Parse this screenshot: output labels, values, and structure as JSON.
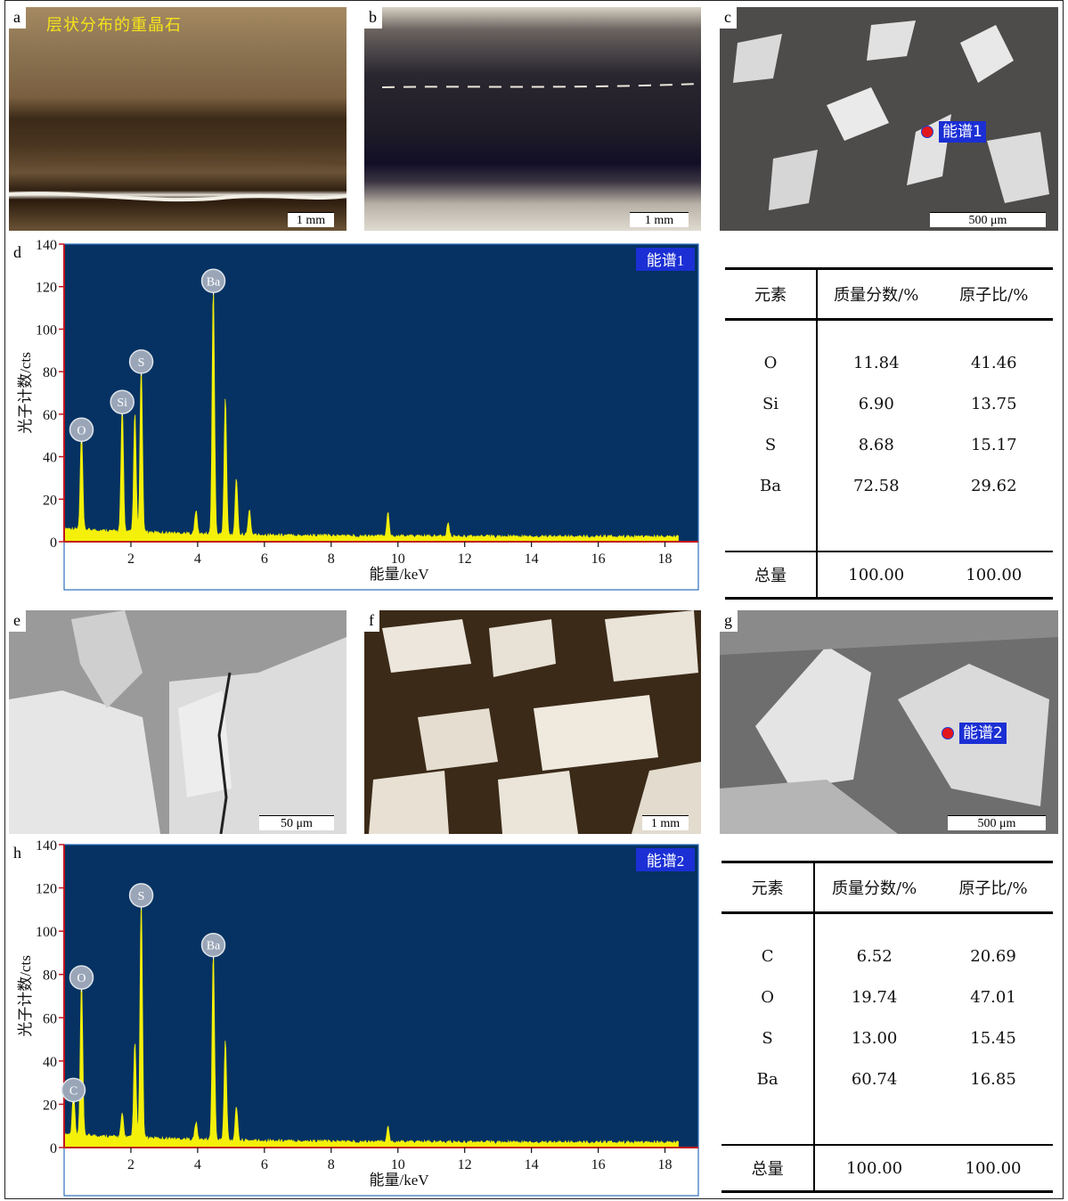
{
  "panels": {
    "a": {
      "letter": "a",
      "caption": "层状分布的重晶石",
      "scale": "1 mm"
    },
    "b": {
      "letter": "b",
      "scale": "1 mm"
    },
    "c": {
      "letter": "c",
      "scale": "500 μm",
      "spot": "能谱1"
    },
    "d": {
      "letter": "d"
    },
    "e": {
      "letter": "e",
      "scale": "50 μm"
    },
    "f": {
      "letter": "f",
      "scale": "1 mm"
    },
    "g": {
      "letter": "g",
      "scale": "500 μm",
      "spot": "能谱2"
    },
    "h": {
      "letter": "h"
    }
  },
  "colors": {
    "plot_bg": "#053262",
    "spectrum": "#f4f00a",
    "axis": "#c0161d",
    "peak_badge": "#9aa6b8"
  },
  "chart_data": [
    {
      "type": "line",
      "panel": "d",
      "legend": "能谱1",
      "xlabel": "能量/keV",
      "ylabel": "光子计数/cts",
      "xlim": [
        0,
        19
      ],
      "ylim": [
        0,
        140
      ],
      "xticks": [
        2,
        4,
        6,
        8,
        10,
        12,
        14,
        16,
        18
      ],
      "yticks": [
        0,
        20,
        40,
        60,
        80,
        100,
        120,
        140
      ],
      "peaks": [
        {
          "label": "O",
          "x": 0.52,
          "y": 46
        },
        {
          "label": "Si",
          "x": 1.74,
          "y": 59
        },
        {
          "label": "",
          "x": 2.12,
          "y": 56
        },
        {
          "label": "S",
          "x": 2.31,
          "y": 78
        },
        {
          "label": "Ba",
          "x": 4.47,
          "y": 116
        },
        {
          "label": "",
          "x": 4.83,
          "y": 64
        },
        {
          "label": "",
          "x": 5.16,
          "y": 27
        },
        {
          "label": "",
          "x": 5.55,
          "y": 12
        },
        {
          "label": "",
          "x": 3.95,
          "y": 11
        },
        {
          "label": "",
          "x": 9.7,
          "y": 11
        },
        {
          "label": "",
          "x": 11.5,
          "y": 6
        }
      ]
    },
    {
      "type": "line",
      "panel": "h",
      "legend": "能谱2",
      "xlabel": "能量/keV",
      "ylabel": "光子计数/cts",
      "xlim": [
        0,
        19
      ],
      "ylim": [
        0,
        140
      ],
      "xticks": [
        2,
        4,
        6,
        8,
        10,
        12,
        14,
        16,
        18
      ],
      "yticks": [
        0,
        20,
        40,
        60,
        80,
        100,
        120,
        140
      ],
      "peaks": [
        {
          "label": "C",
          "x": 0.28,
          "y": 20
        },
        {
          "label": "O",
          "x": 0.52,
          "y": 72
        },
        {
          "label": "",
          "x": 2.12,
          "y": 44
        },
        {
          "label": "S",
          "x": 2.31,
          "y": 110
        },
        {
          "label": "Ba",
          "x": 4.47,
          "y": 87
        },
        {
          "label": "",
          "x": 4.83,
          "y": 46
        },
        {
          "label": "",
          "x": 5.16,
          "y": 16
        },
        {
          "label": "",
          "x": 3.95,
          "y": 8
        },
        {
          "label": "",
          "x": 1.74,
          "y": 11
        },
        {
          "label": "",
          "x": 9.7,
          "y": 7
        }
      ]
    }
  ],
  "tables": [
    {
      "headers": [
        "元素",
        "质量分数/%",
        "原子比/%"
      ],
      "rows": [
        [
          "O",
          "11.84",
          "41.46"
        ],
        [
          "Si",
          "6.90",
          "13.75"
        ],
        [
          "S",
          "8.68",
          "15.17"
        ],
        [
          "Ba",
          "72.58",
          "29.62"
        ]
      ],
      "total": [
        "总量",
        "100.00",
        "100.00"
      ]
    },
    {
      "headers": [
        "元素",
        "质量分数/%",
        "原子比/%"
      ],
      "rows": [
        [
          "C",
          "6.52",
          "20.69"
        ],
        [
          "O",
          "19.74",
          "47.01"
        ],
        [
          "S",
          "13.00",
          "15.45"
        ],
        [
          "Ba",
          "60.74",
          "16.85"
        ]
      ],
      "total": [
        "总量",
        "100.00",
        "100.00"
      ]
    }
  ]
}
